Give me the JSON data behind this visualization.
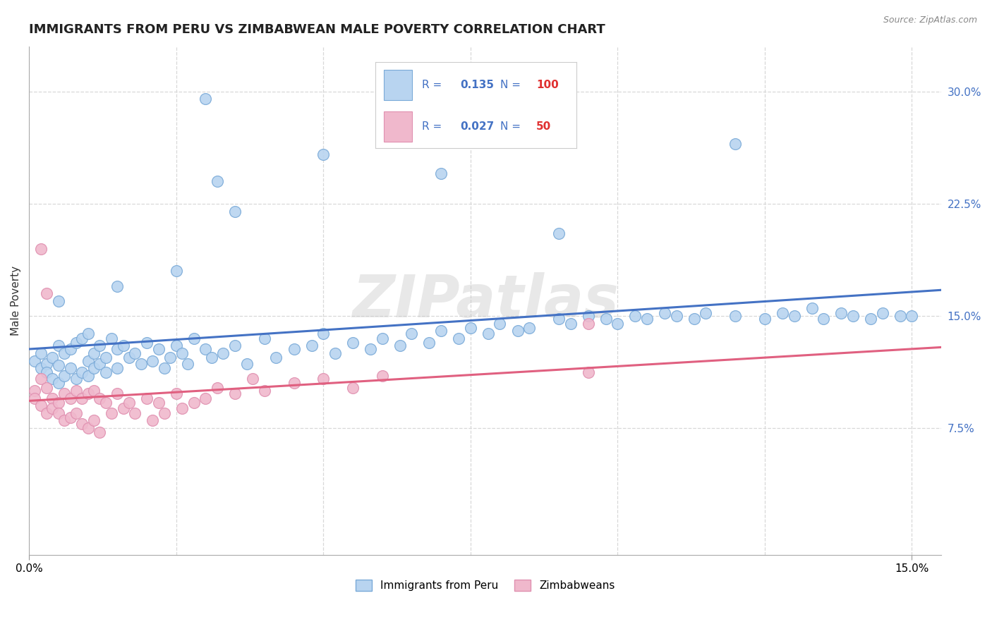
{
  "title": "IMMIGRANTS FROM PERU VS ZIMBABWEAN MALE POVERTY CORRELATION CHART",
  "source": "Source: ZipAtlas.com",
  "ylabel": "Male Poverty",
  "ytick_labels": [
    "7.5%",
    "15.0%",
    "22.5%",
    "30.0%"
  ],
  "ytick_values": [
    0.075,
    0.15,
    0.225,
    0.3
  ],
  "xtick_labels": [
    "0.0%",
    "",
    "",
    "",
    "",
    "",
    "",
    "",
    "",
    "",
    "",
    "",
    "",
    "",
    "",
    "15.0%"
  ],
  "xtick_values": [
    0.0,
    0.01,
    0.02,
    0.03,
    0.04,
    0.05,
    0.06,
    0.07,
    0.08,
    0.09,
    0.1,
    0.11,
    0.12,
    0.13,
    0.14,
    0.15
  ],
  "xlim": [
    0.0,
    0.155
  ],
  "ylim": [
    -0.01,
    0.33
  ],
  "blue_R": 0.135,
  "blue_N": 100,
  "pink_R": 0.027,
  "pink_N": 50,
  "blue_color": "#b8d4f0",
  "pink_color": "#f0b8cc",
  "blue_edge_color": "#7aaad8",
  "pink_edge_color": "#e090b0",
  "blue_line_color": "#4472c4",
  "pink_line_color": "#e06080",
  "blue_label": "Immigrants from Peru",
  "pink_label": "Zimbabweans",
  "watermark": "ZIPatlas",
  "background_color": "#ffffff",
  "grid_color": "#d8d8d8",
  "title_fontsize": 13,
  "axis_label_fontsize": 11,
  "tick_fontsize": 11,
  "legend_text_color": "#4472c4",
  "legend_N_color": "#e03030",
  "blue_x": [
    0.001,
    0.002,
    0.002,
    0.003,
    0.003,
    0.004,
    0.004,
    0.005,
    0.005,
    0.005,
    0.006,
    0.006,
    0.007,
    0.007,
    0.008,
    0.008,
    0.009,
    0.009,
    0.01,
    0.01,
    0.01,
    0.011,
    0.011,
    0.012,
    0.012,
    0.013,
    0.013,
    0.014,
    0.015,
    0.015,
    0.016,
    0.017,
    0.018,
    0.019,
    0.02,
    0.021,
    0.022,
    0.023,
    0.024,
    0.025,
    0.026,
    0.027,
    0.028,
    0.03,
    0.031,
    0.033,
    0.035,
    0.037,
    0.04,
    0.042,
    0.045,
    0.048,
    0.05,
    0.052,
    0.055,
    0.058,
    0.06,
    0.063,
    0.065,
    0.068,
    0.07,
    0.073,
    0.075,
    0.078,
    0.08,
    0.083,
    0.085,
    0.09,
    0.092,
    0.095,
    0.098,
    0.1,
    0.103,
    0.105,
    0.108,
    0.11,
    0.113,
    0.115,
    0.12,
    0.125,
    0.128,
    0.13,
    0.133,
    0.135,
    0.138,
    0.14,
    0.143,
    0.145,
    0.148,
    0.15,
    0.03,
    0.05,
    0.07,
    0.09,
    0.12,
    0.032,
    0.035,
    0.025,
    0.015,
    0.005
  ],
  "blue_y": [
    0.12,
    0.125,
    0.115,
    0.118,
    0.112,
    0.122,
    0.108,
    0.13,
    0.117,
    0.105,
    0.125,
    0.11,
    0.128,
    0.115,
    0.132,
    0.108,
    0.135,
    0.112,
    0.138,
    0.12,
    0.11,
    0.125,
    0.115,
    0.13,
    0.118,
    0.122,
    0.112,
    0.135,
    0.128,
    0.115,
    0.13,
    0.122,
    0.125,
    0.118,
    0.132,
    0.12,
    0.128,
    0.115,
    0.122,
    0.13,
    0.125,
    0.118,
    0.135,
    0.128,
    0.122,
    0.125,
    0.13,
    0.118,
    0.135,
    0.122,
    0.128,
    0.13,
    0.138,
    0.125,
    0.132,
    0.128,
    0.135,
    0.13,
    0.138,
    0.132,
    0.14,
    0.135,
    0.142,
    0.138,
    0.145,
    0.14,
    0.142,
    0.148,
    0.145,
    0.15,
    0.148,
    0.145,
    0.15,
    0.148,
    0.152,
    0.15,
    0.148,
    0.152,
    0.15,
    0.148,
    0.152,
    0.15,
    0.155,
    0.148,
    0.152,
    0.15,
    0.148,
    0.152,
    0.15,
    0.15,
    0.295,
    0.258,
    0.245,
    0.205,
    0.265,
    0.24,
    0.22,
    0.18,
    0.17,
    0.16
  ],
  "pink_x": [
    0.001,
    0.001,
    0.002,
    0.002,
    0.003,
    0.003,
    0.004,
    0.004,
    0.005,
    0.005,
    0.006,
    0.006,
    0.007,
    0.007,
    0.008,
    0.008,
    0.009,
    0.009,
    0.01,
    0.01,
    0.011,
    0.011,
    0.012,
    0.012,
    0.013,
    0.014,
    0.015,
    0.016,
    0.017,
    0.018,
    0.02,
    0.021,
    0.022,
    0.023,
    0.025,
    0.026,
    0.028,
    0.03,
    0.032,
    0.035,
    0.038,
    0.04,
    0.045,
    0.05,
    0.055,
    0.06,
    0.095,
    0.095,
    0.002,
    0.003
  ],
  "pink_y": [
    0.1,
    0.095,
    0.108,
    0.09,
    0.102,
    0.085,
    0.095,
    0.088,
    0.092,
    0.085,
    0.098,
    0.08,
    0.095,
    0.082,
    0.1,
    0.085,
    0.095,
    0.078,
    0.098,
    0.075,
    0.1,
    0.08,
    0.095,
    0.072,
    0.092,
    0.085,
    0.098,
    0.088,
    0.092,
    0.085,
    0.095,
    0.08,
    0.092,
    0.085,
    0.098,
    0.088,
    0.092,
    0.095,
    0.102,
    0.098,
    0.108,
    0.1,
    0.105,
    0.108,
    0.102,
    0.11,
    0.145,
    0.112,
    0.195,
    0.165
  ]
}
